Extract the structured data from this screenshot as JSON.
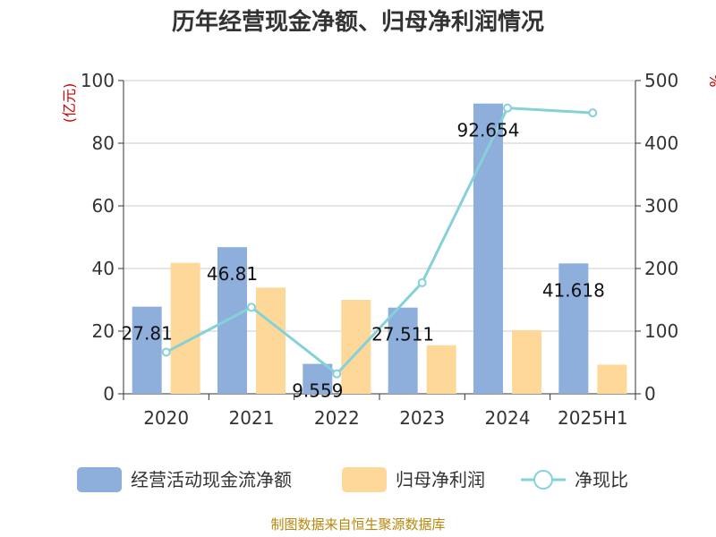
{
  "chart_data": {
    "type": "bar",
    "title": "历年经营现金净额、归母净利润情况",
    "categories": [
      "2020",
      "2021",
      "2022",
      "2023",
      "2024",
      "2025H1"
    ],
    "left_axis": {
      "unit_label": "(亿元)",
      "range": [
        0,
        100
      ],
      "ticks": [
        "0",
        "20",
        "40",
        "60",
        "80",
        "100"
      ]
    },
    "right_axis": {
      "unit_label": "%",
      "range": [
        0,
        500
      ],
      "ticks": [
        "0",
        "100",
        "200",
        "300",
        "400",
        "500"
      ]
    },
    "series": [
      {
        "name": "经营活动现金流净额",
        "type": "bar",
        "axis": "left",
        "color": "#8eaedb",
        "values": [
          27.81,
          46.81,
          9.559,
          27.511,
          92.654,
          41.618
        ],
        "labels": [
          "27.81",
          "46.81",
          "9.559",
          "27.511",
          "92.654",
          "41.618"
        ]
      },
      {
        "name": "归母净利润",
        "type": "bar",
        "axis": "left",
        "color": "#fdd899",
        "values": [
          41.8,
          33.9,
          30.0,
          15.5,
          20.3,
          9.3
        ]
      },
      {
        "name": "净现比",
        "type": "line",
        "axis": "right",
        "color": "#86d1d8",
        "values": [
          66.5,
          138.1,
          31.9,
          177.4,
          456.2,
          448.4
        ]
      }
    ],
    "grid": true,
    "legend_position": "bottom"
  },
  "source": "制图数据来自恒生聚源数据库"
}
